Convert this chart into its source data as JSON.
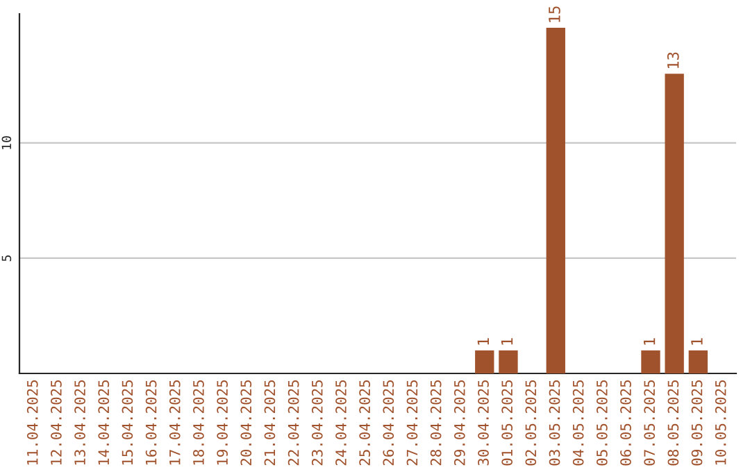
{
  "chart_data": {
    "type": "bar",
    "categories": [
      "11.04.2025",
      "12.04.2025",
      "13.04.2025",
      "14.04.2025",
      "15.04.2025",
      "16.04.2025",
      "17.04.2025",
      "18.04.2025",
      "19.04.2025",
      "20.04.2025",
      "21.04.2025",
      "22.04.2025",
      "23.04.2025",
      "24.04.2025",
      "25.04.2025",
      "26.04.2025",
      "27.04.2025",
      "28.04.2025",
      "29.04.2025",
      "30.04.2025",
      "01.05.2025",
      "02.05.2025",
      "03.05.2025",
      "04.05.2025",
      "05.05.2025",
      "06.05.2025",
      "07.05.2025",
      "08.05.2025",
      "09.05.2025",
      "10.05.2025"
    ],
    "values": [
      null,
      null,
      null,
      null,
      null,
      null,
      null,
      null,
      null,
      null,
      null,
      null,
      null,
      null,
      null,
      null,
      null,
      null,
      null,
      1,
      1,
      null,
      15,
      null,
      null,
      null,
      1,
      13,
      1,
      null
    ],
    "value_labels": [
      null,
      null,
      null,
      null,
      null,
      null,
      null,
      null,
      null,
      null,
      null,
      null,
      null,
      null,
      null,
      null,
      null,
      null,
      null,
      "1",
      "1",
      null,
      "15",
      null,
      null,
      null,
      "1",
      "13",
      "1",
      null
    ],
    "color": "#a0522d",
    "ylim": [
      0,
      15.6
    ],
    "yticks": [
      5,
      10
    ],
    "grid": "y",
    "legend": false
  }
}
